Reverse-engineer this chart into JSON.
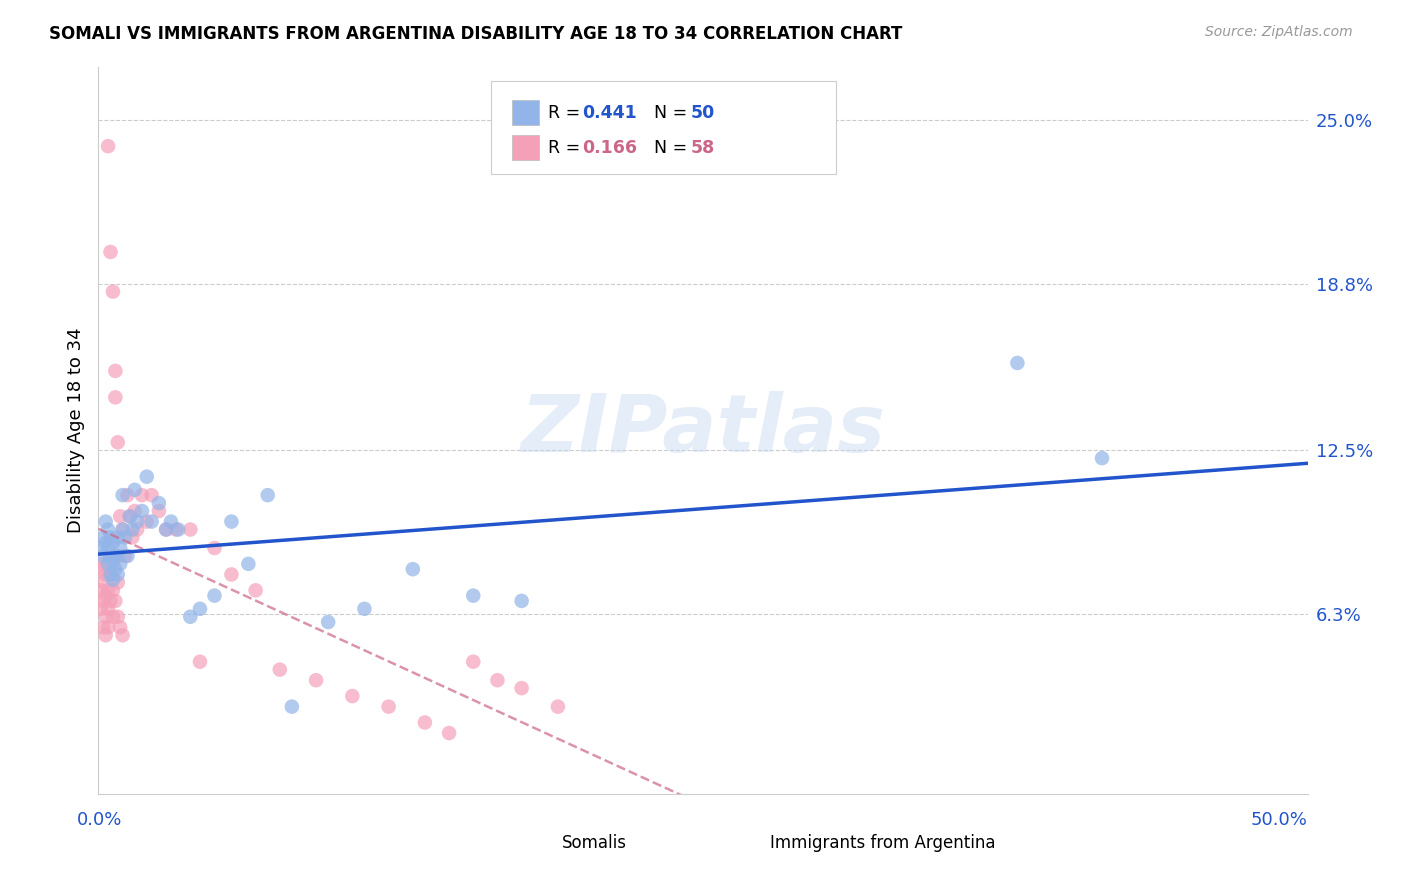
{
  "title": "SOMALI VS IMMIGRANTS FROM ARGENTINA DISABILITY AGE 18 TO 34 CORRELATION CHART",
  "source": "Source: ZipAtlas.com",
  "ylabel": "Disability Age 18 to 34",
  "ytick_values": [
    0.063,
    0.125,
    0.188,
    0.25
  ],
  "ytick_labels": [
    "6.3%",
    "12.5%",
    "18.8%",
    "25.0%"
  ],
  "xlim": [
    0.0,
    0.5
  ],
  "ylim": [
    -0.005,
    0.27
  ],
  "somali_color": "#92b4e8",
  "argentina_color": "#f4a0b8",
  "somali_line_color": "#2255cc",
  "argentina_line_color": "#cc6688",
  "watermark": "ZIPatlas",
  "legend_R1": "0.441",
  "legend_N1": "50",
  "legend_R2": "0.166",
  "legend_N2": "58",
  "somali_x": [
    0.001,
    0.002,
    0.002,
    0.003,
    0.003,
    0.004,
    0.004,
    0.004,
    0.005,
    0.005,
    0.005,
    0.006,
    0.006,
    0.006,
    0.007,
    0.007,
    0.008,
    0.008,
    0.008,
    0.009,
    0.009,
    0.01,
    0.01,
    0.011,
    0.012,
    0.013,
    0.014,
    0.015,
    0.016,
    0.018,
    0.02,
    0.022,
    0.025,
    0.028,
    0.03,
    0.033,
    0.038,
    0.042,
    0.048,
    0.055,
    0.062,
    0.07,
    0.08,
    0.095,
    0.11,
    0.13,
    0.155,
    0.175,
    0.38,
    0.415
  ],
  "somali_y": [
    0.088,
    0.092,
    0.085,
    0.098,
    0.09,
    0.095,
    0.088,
    0.082,
    0.092,
    0.085,
    0.078,
    0.09,
    0.083,
    0.076,
    0.085,
    0.08,
    0.092,
    0.085,
    0.078,
    0.088,
    0.082,
    0.108,
    0.095,
    0.092,
    0.085,
    0.1,
    0.095,
    0.11,
    0.098,
    0.102,
    0.115,
    0.098,
    0.105,
    0.095,
    0.098,
    0.095,
    0.062,
    0.065,
    0.07,
    0.098,
    0.082,
    0.108,
    0.028,
    0.06,
    0.065,
    0.08,
    0.07,
    0.068,
    0.158,
    0.122
  ],
  "argentina_x": [
    0.001,
    0.001,
    0.001,
    0.002,
    0.002,
    0.002,
    0.002,
    0.003,
    0.003,
    0.003,
    0.003,
    0.004,
    0.004,
    0.004,
    0.004,
    0.005,
    0.005,
    0.005,
    0.006,
    0.006,
    0.006,
    0.007,
    0.007,
    0.007,
    0.008,
    0.008,
    0.008,
    0.009,
    0.009,
    0.01,
    0.01,
    0.011,
    0.012,
    0.013,
    0.014,
    0.015,
    0.016,
    0.018,
    0.02,
    0.022,
    0.025,
    0.028,
    0.032,
    0.038,
    0.042,
    0.048,
    0.055,
    0.065,
    0.075,
    0.09,
    0.105,
    0.12,
    0.135,
    0.145,
    0.155,
    0.165,
    0.175,
    0.19
  ],
  "argentina_y": [
    0.08,
    0.072,
    0.065,
    0.082,
    0.075,
    0.068,
    0.058,
    0.078,
    0.07,
    0.062,
    0.055,
    0.24,
    0.072,
    0.065,
    0.058,
    0.2,
    0.078,
    0.068,
    0.185,
    0.072,
    0.062,
    0.155,
    0.145,
    0.068,
    0.128,
    0.075,
    0.062,
    0.1,
    0.058,
    0.095,
    0.055,
    0.085,
    0.108,
    0.1,
    0.092,
    0.102,
    0.095,
    0.108,
    0.098,
    0.108,
    0.102,
    0.095,
    0.095,
    0.095,
    0.045,
    0.088,
    0.078,
    0.072,
    0.042,
    0.038,
    0.032,
    0.028,
    0.022,
    0.018,
    0.045,
    0.038,
    0.035,
    0.028
  ]
}
